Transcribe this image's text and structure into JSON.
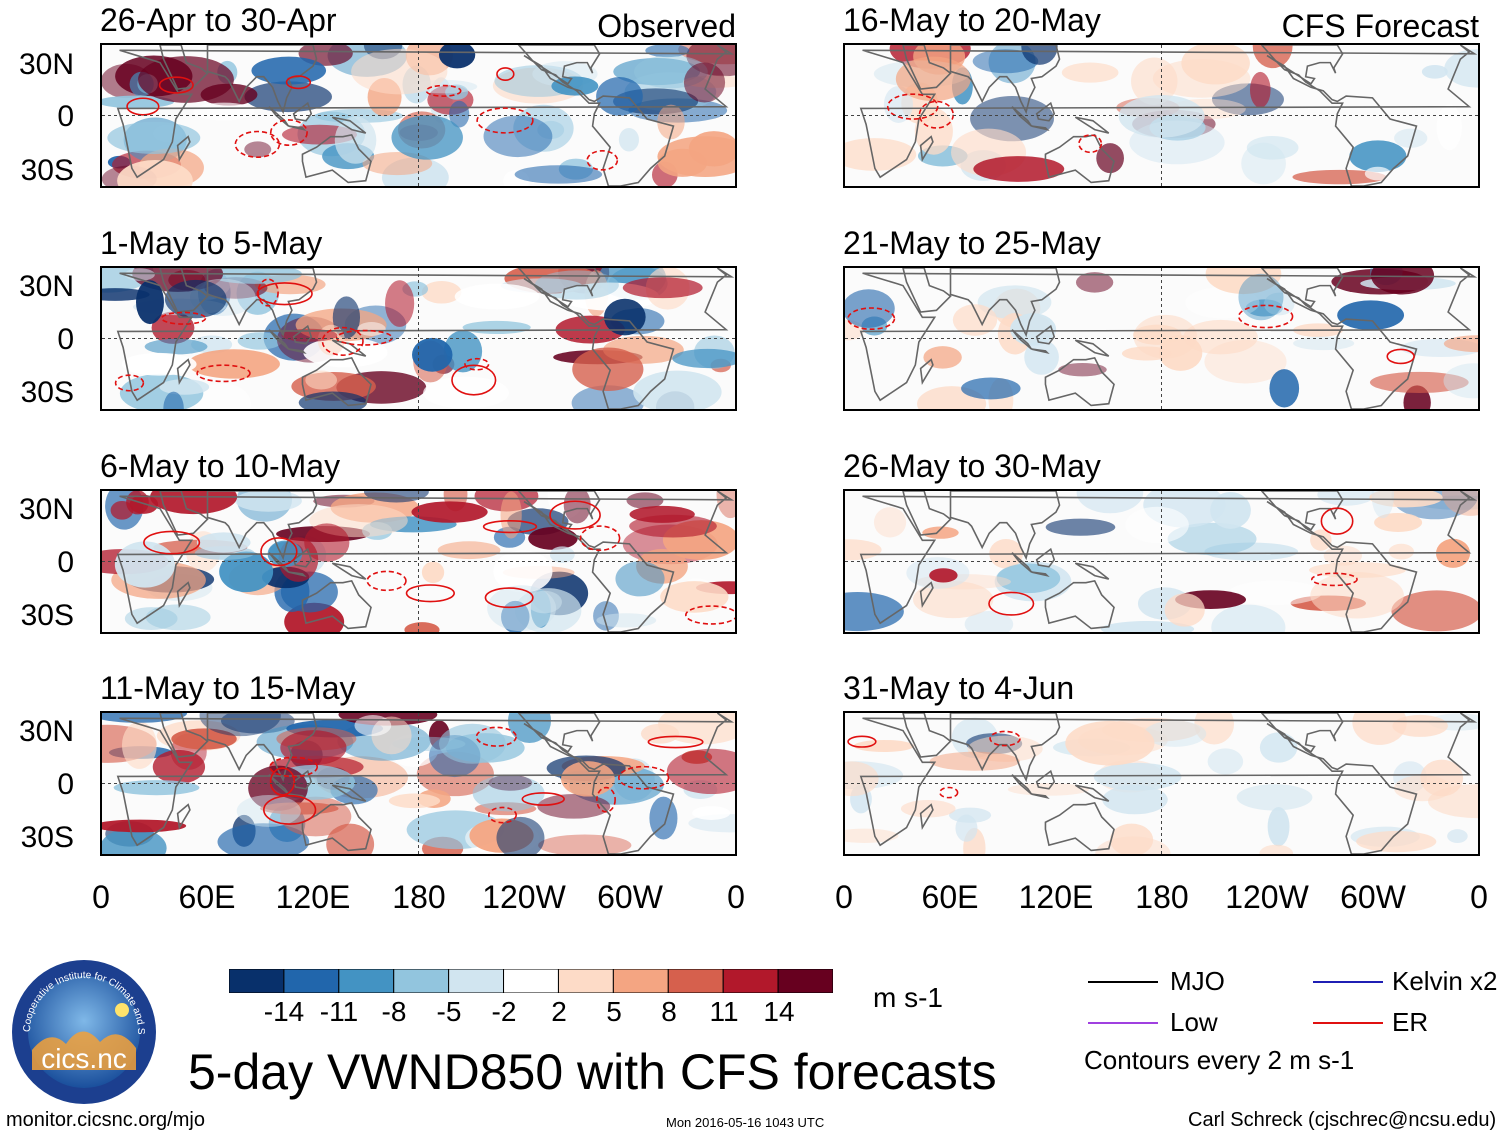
{
  "observed_label": "Observed",
  "forecast_label": "CFS Forecast",
  "left_panels": [
    {
      "period": "26-Apr to 30-Apr"
    },
    {
      "period": "1-May to 5-May"
    },
    {
      "period": "6-May to 10-May"
    },
    {
      "period": "11-May to 15-May"
    }
  ],
  "right_panels": [
    {
      "period": "16-May to 20-May"
    },
    {
      "period": "21-May to 25-May"
    },
    {
      "period": "26-May to 30-May"
    },
    {
      "period": "31-May to 4-Jun"
    }
  ],
  "lat_labels": [
    "30N",
    "0",
    "30S"
  ],
  "lon_labels": [
    "0",
    "60E",
    "120E",
    "180",
    "120W",
    "60W",
    "0"
  ],
  "colorbar": {
    "colors": [
      "#08306b",
      "#2166ac",
      "#4393c3",
      "#92c5de",
      "#d1e5f0",
      "#ffffff",
      "#fddbc7",
      "#f4a582",
      "#d6604d",
      "#b2182b",
      "#67001f"
    ],
    "labels": [
      "-14",
      "-11",
      "-8",
      "-5",
      "-2",
      "2",
      "5",
      "8",
      "11",
      "14"
    ],
    "units": "m s-1"
  },
  "legend": {
    "items": [
      {
        "label": "MJO",
        "color": "#000000"
      },
      {
        "label": "Kelvin x2",
        "color": "#1f1fb4"
      },
      {
        "label": "Low",
        "color": "#a040e0"
      },
      {
        "label": "ER",
        "color": "#e01010"
      }
    ],
    "contour_note": "Contours every 2 m s-1"
  },
  "logo_text": "cics.nc",
  "logo_ring_text": "Cooperative Institute for Climate and Satellites",
  "main_title": "5-day VWND850 with CFS forecasts",
  "url": "monitor.cicsnc.org/mjo",
  "timestamp": "Mon 2016-05-16 1043 UTC",
  "credit": "Carl Schreck (cjschrec@ncsu.edu)"
}
